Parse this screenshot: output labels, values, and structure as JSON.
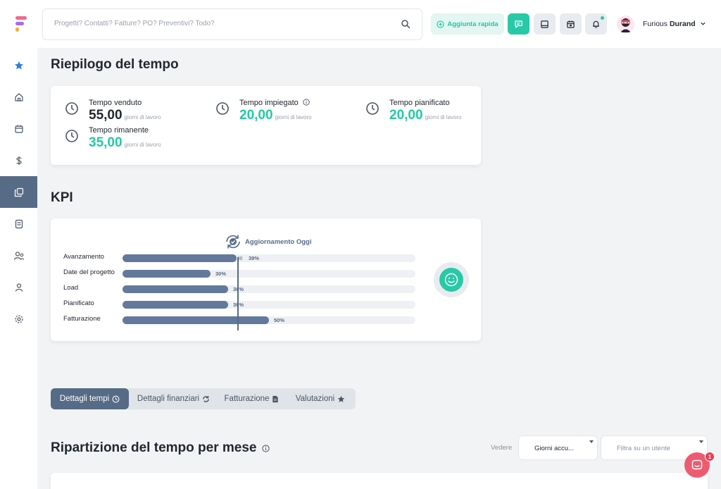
{
  "search": {
    "placeholder": "Progetti? Contatti? Fatture? PO? Preventivi? Todo?"
  },
  "toolbar": {
    "quick_add_label": "Aggiunta rapida",
    "buttons": [
      {
        "icon": "chat-icon",
        "active": true
      },
      {
        "icon": "inbox-icon",
        "active": false
      },
      {
        "icon": "calendar-check-icon",
        "active": false
      },
      {
        "icon": "bell-icon",
        "active": false,
        "notification": true
      }
    ]
  },
  "user": {
    "first_name": "Furious",
    "last_name": "Durand"
  },
  "sidebar": {
    "items": [
      {
        "icon": "star-icon",
        "active": false
      },
      {
        "icon": "home-icon",
        "active": false
      },
      {
        "icon": "calendar-icon",
        "active": false
      },
      {
        "icon": "dollar-icon",
        "active": false
      },
      {
        "icon": "projects-icon",
        "active": true
      },
      {
        "icon": "invoice-icon",
        "active": false
      },
      {
        "icon": "contacts-icon",
        "active": false
      },
      {
        "icon": "user-icon",
        "active": false
      },
      {
        "icon": "settings-icon",
        "active": false
      }
    ]
  },
  "time_summary": {
    "title": "Riepilogo del tempo",
    "unit": "giorni di lavoro",
    "sold": {
      "label": "Tempo venduto",
      "value": "55,00"
    },
    "spent": {
      "label": "Tempo impiegato",
      "value": "20,00"
    },
    "planned": {
      "label": "Tempo pianificato",
      "value": "20,00"
    },
    "remaining": {
      "label": "Tempo rimanente",
      "value": "35,00"
    }
  },
  "kpi": {
    "title": "KPI",
    "update_label": "Aggiornamento Oggi",
    "today_marker": "III",
    "rows": [
      {
        "label": "Avanzamento",
        "percent": 39,
        "percent_label": "39%"
      },
      {
        "label": "Date del progetto",
        "percent": 30,
        "percent_label": "30%"
      },
      {
        "label": "Load",
        "percent": 36,
        "percent_label": "36%"
      },
      {
        "label": "Pianificato",
        "percent": 36,
        "percent_label": "36%"
      },
      {
        "label": "Fatturazione",
        "percent": 50,
        "percent_label": "50%"
      }
    ],
    "status_icon": "smiley-icon"
  },
  "tabs": [
    {
      "label": "Dettagli tempi",
      "icon": "clock-icon",
      "active": true
    },
    {
      "label": "Dettagli finanziari",
      "icon": "refresh-icon",
      "active": false
    },
    {
      "label": "Fatturazione",
      "icon": "document-icon",
      "active": false
    },
    {
      "label": "Valutazioni",
      "icon": "star-icon",
      "active": false
    }
  ],
  "breakdown": {
    "title": "Ripartizione del tempo per mese",
    "view_label": "Vedere",
    "view_select": "Giorni accu...",
    "user_filter_placeholder": "Filtra su un utente"
  },
  "chat": {
    "badge": "1"
  },
  "colors": {
    "accent": "#28c9a6",
    "primary": "#566b86",
    "bar": "#62799b",
    "chat": "#ee5a6f"
  }
}
